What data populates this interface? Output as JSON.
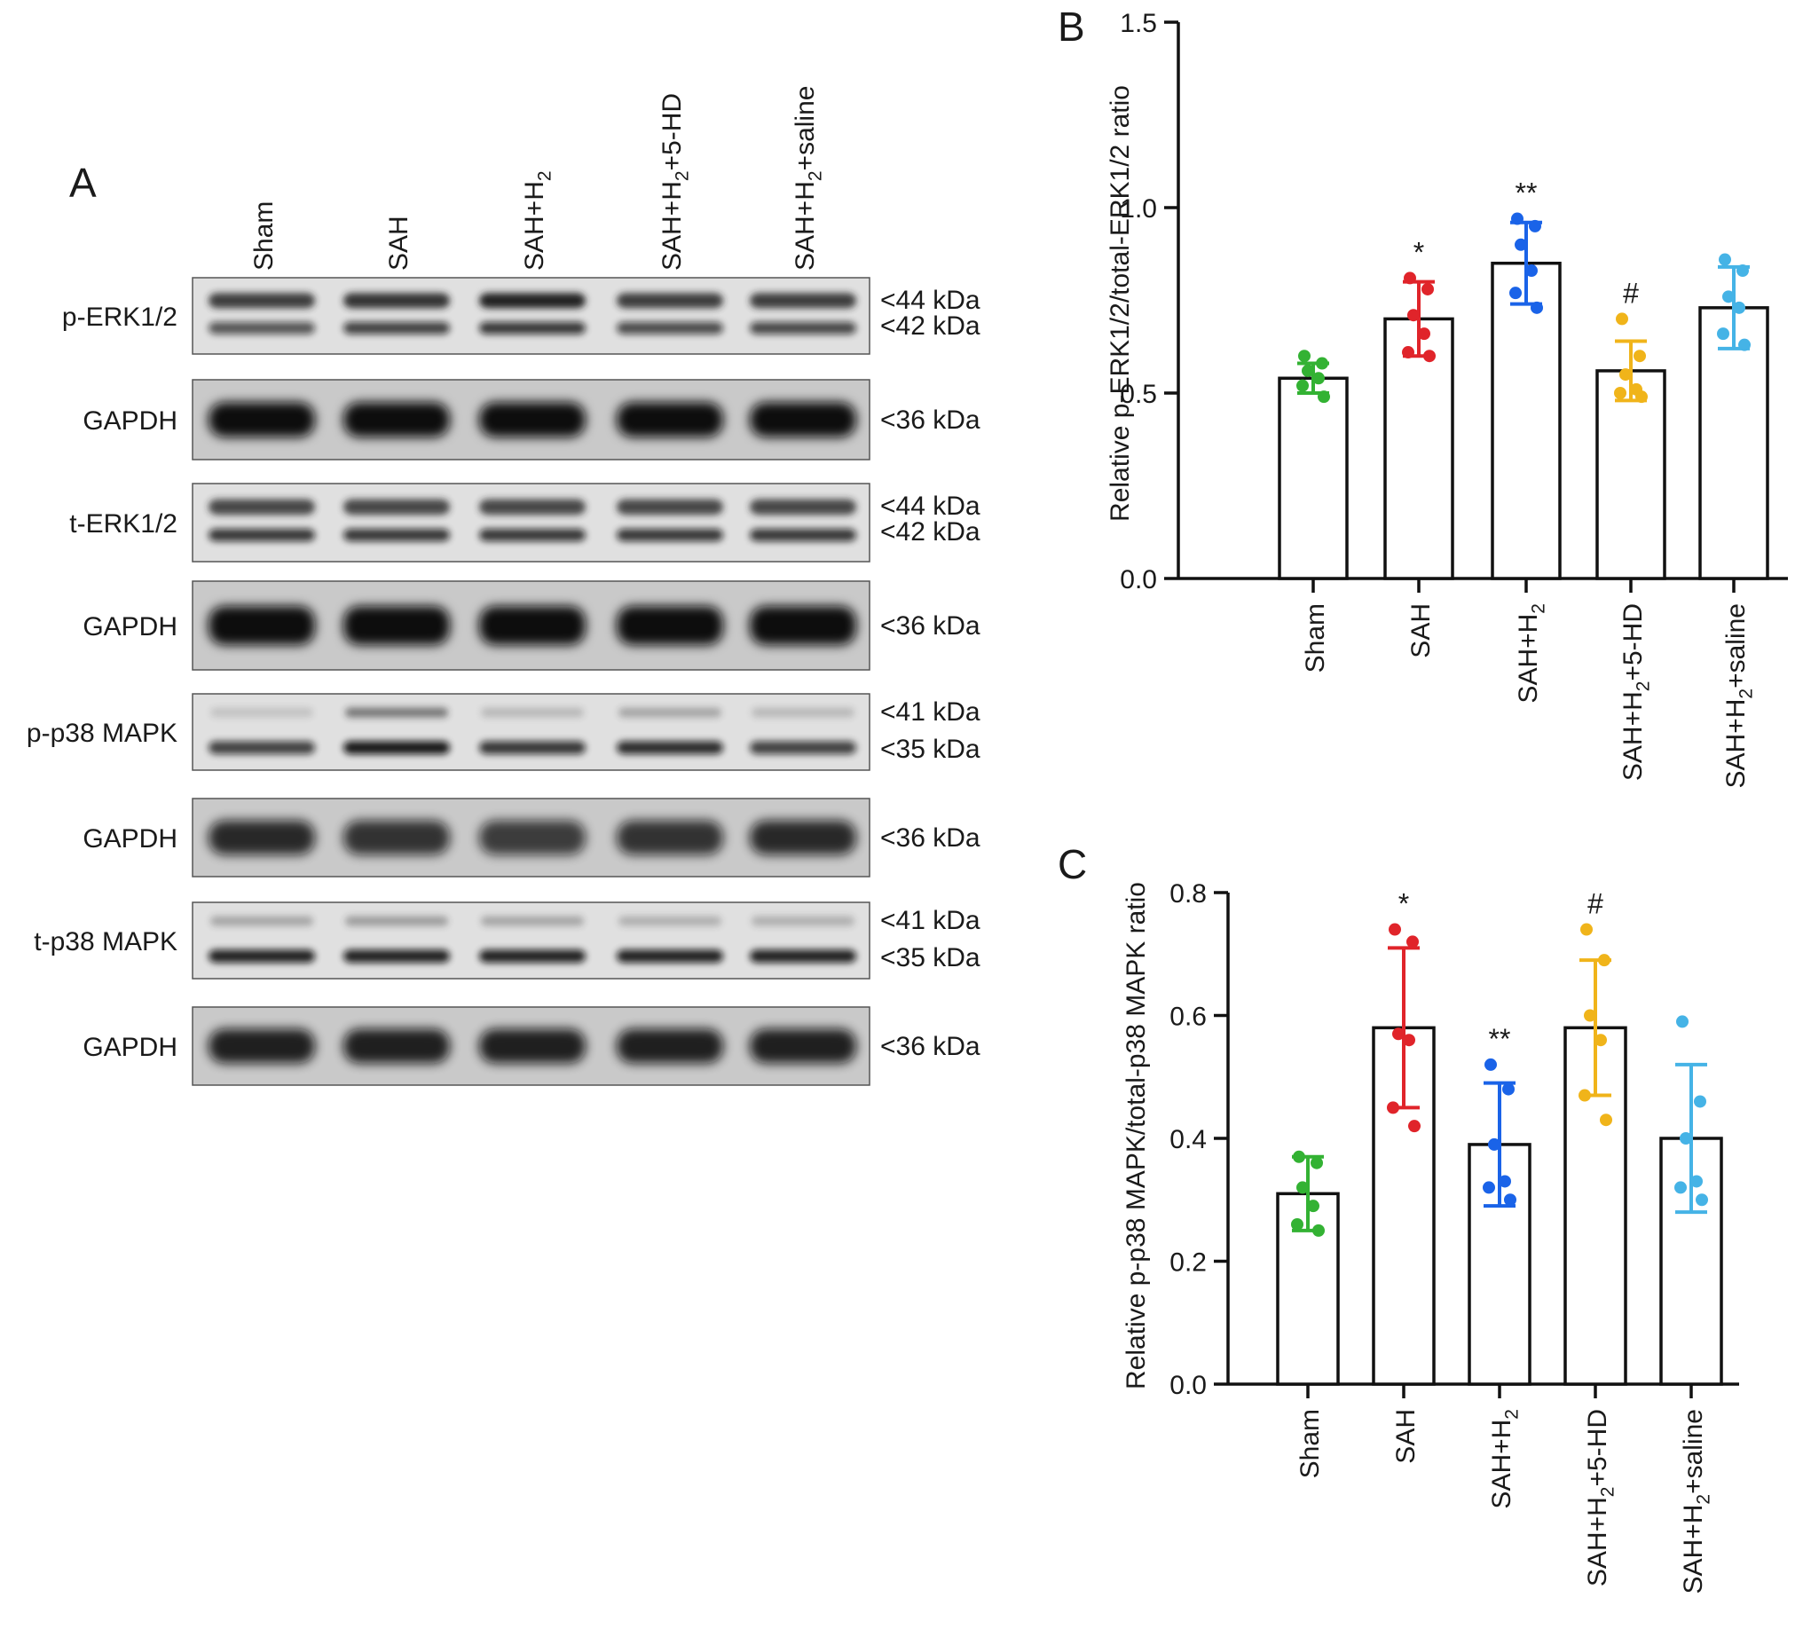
{
  "panel_a": {
    "letter": "A",
    "lanes": [
      {
        "base": "Sham",
        "sub": "",
        "tail": ""
      },
      {
        "base": "SAH",
        "sub": "",
        "tail": ""
      },
      {
        "base": "SAH+H",
        "sub": "2",
        "tail": ""
      },
      {
        "base": "SAH+H",
        "sub": "2",
        "tail": "+5-HD"
      },
      {
        "base": "SAH+H",
        "sub": "2",
        "tail": "+saline"
      }
    ],
    "blots": [
      {
        "label": "p-ERK1/2",
        "markers": [
          "<44 kDa",
          "<42 kDa"
        ],
        "kind": "double",
        "shade": [
          0.65,
          0.75,
          0.8,
          0.7,
          0.72
        ],
        "upper": [
          0.85,
          0.9,
          1.0,
          0.85,
          0.85
        ]
      },
      {
        "label": "GAPDH",
        "markers": [
          "<36 kDa"
        ],
        "kind": "gapdh",
        "shade": [
          1,
          1,
          1,
          1,
          1
        ]
      },
      {
        "label": "t-ERK1/2",
        "markers": [
          "<44 kDa",
          "<42 kDa"
        ],
        "kind": "double",
        "shade": [
          0.8,
          0.8,
          0.8,
          0.8,
          0.8
        ],
        "upper": [
          0.8,
          0.8,
          0.8,
          0.8,
          0.8
        ]
      },
      {
        "label": "GAPDH",
        "markers": [
          "<36 kDa"
        ],
        "kind": "gapdh",
        "shade": [
          1,
          1,
          1,
          1,
          1
        ]
      },
      {
        "label": "p-p38 MAPK",
        "markers": [
          "<41 kDa",
          "<35 kDa"
        ],
        "kind": "p38",
        "shade": [
          0.75,
          0.95,
          0.8,
          0.85,
          0.75
        ],
        "upper": [
          0.15,
          0.55,
          0.2,
          0.3,
          0.2
        ]
      },
      {
        "label": "GAPDH",
        "markers": [
          "<36 kDa"
        ],
        "kind": "gapdh",
        "shade": [
          0.85,
          0.8,
          0.75,
          0.8,
          0.85
        ]
      },
      {
        "label": "t-p38 MAPK",
        "markers": [
          "<41 kDa",
          "<35 kDa"
        ],
        "kind": "p38",
        "shade": [
          0.9,
          0.9,
          0.9,
          0.9,
          0.9
        ],
        "upper": [
          0.3,
          0.35,
          0.3,
          0.25,
          0.25
        ]
      },
      {
        "label": "GAPDH",
        "markers": [
          "<36 kDa"
        ],
        "kind": "gapdh",
        "shade": [
          0.9,
          0.9,
          0.9,
          0.9,
          0.9
        ]
      }
    ]
  },
  "chart_data": [
    {
      "letter": "B",
      "type": "bar",
      "categories": [
        {
          "base": "Sham",
          "sub": "",
          "tail": ""
        },
        {
          "base": "SAH",
          "sub": "",
          "tail": ""
        },
        {
          "base": "SAH+H",
          "sub": "2",
          "tail": ""
        },
        {
          "base": "SAH+H",
          "sub": "2",
          "tail": "+5-HD"
        },
        {
          "base": "SAH+H",
          "sub": "2",
          "tail": "+saline"
        }
      ],
      "values": [
        0.54,
        0.7,
        0.85,
        0.56,
        0.73
      ],
      "sd": [
        0.04,
        0.1,
        0.11,
        0.08,
        0.11
      ],
      "points": [
        [
          0.6,
          0.58,
          0.56,
          0.54,
          0.52,
          0.49
        ],
        [
          0.81,
          0.78,
          0.71,
          0.66,
          0.61,
          0.6
        ],
        [
          0.97,
          0.95,
          0.9,
          0.83,
          0.77,
          0.73
        ],
        [
          0.7,
          0.6,
          0.55,
          0.51,
          0.5,
          0.49
        ],
        [
          0.86,
          0.83,
          0.76,
          0.73,
          0.66,
          0.63
        ]
      ],
      "colors": [
        "#33b233",
        "#e0242a",
        "#1a63e8",
        "#f0b41a",
        "#45b3e6"
      ],
      "significance": [
        "",
        "*",
        "**",
        "#",
        ""
      ],
      "ylabel": "Relative p-ERK1/2/total-ERK1/2 ratio",
      "ylim": [
        0,
        1.5
      ],
      "yticks": [
        "0.0",
        "0.5",
        "1.0",
        "1.5"
      ],
      "grid": false,
      "legend": "none"
    },
    {
      "letter": "C",
      "type": "bar",
      "categories": [
        {
          "base": "Sham",
          "sub": "",
          "tail": ""
        },
        {
          "base": "SAH",
          "sub": "",
          "tail": ""
        },
        {
          "base": "SAH+H",
          "sub": "2",
          "tail": ""
        },
        {
          "base": "SAH+H",
          "sub": "2",
          "tail": "+5-HD"
        },
        {
          "base": "SAH+H",
          "sub": "2",
          "tail": "+saline"
        }
      ],
      "values": [
        0.31,
        0.58,
        0.39,
        0.58,
        0.4
      ],
      "sd": [
        0.06,
        0.13,
        0.1,
        0.11,
        0.12
      ],
      "points": [
        [
          0.37,
          0.36,
          0.32,
          0.29,
          0.26,
          0.25
        ],
        [
          0.74,
          0.72,
          0.57,
          0.56,
          0.45,
          0.42
        ],
        [
          0.52,
          0.48,
          0.39,
          0.33,
          0.32,
          0.3
        ],
        [
          0.74,
          0.69,
          0.6,
          0.56,
          0.47,
          0.43
        ],
        [
          0.59,
          0.46,
          0.4,
          0.33,
          0.32,
          0.3
        ]
      ],
      "colors": [
        "#33b233",
        "#e0242a",
        "#1a63e8",
        "#f0b41a",
        "#45b3e6"
      ],
      "significance": [
        "",
        "*",
        "**",
        "#",
        ""
      ],
      "ylabel": "Relative p-p38 MAPK/total-p38 MAPK ratio",
      "ylim": [
        0,
        0.8
      ],
      "yticks": [
        "0.0",
        "0.2",
        "0.4",
        "0.6",
        "0.8"
      ],
      "grid": false,
      "legend": "none"
    }
  ]
}
